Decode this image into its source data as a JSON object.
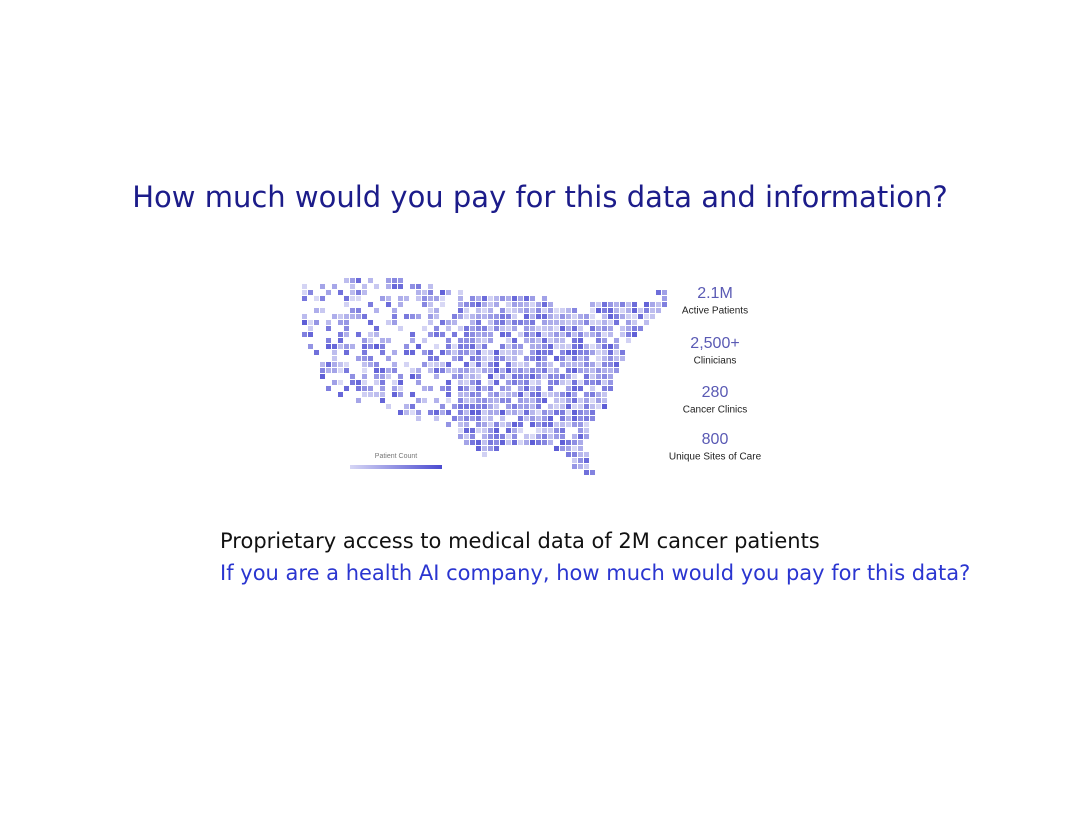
{
  "slide": {
    "title": "How much would you pay for this data and information?",
    "map": {
      "legend_title": "Patient Count",
      "stats": [
        {
          "value": "2.1M",
          "label": "Active Patients"
        },
        {
          "value": "2,500+",
          "label": "Clinicians"
        },
        {
          "value": "280",
          "label": "Cancer Clinics"
        },
        {
          "value": "800",
          "label": "Unique Sites of Care"
        }
      ]
    },
    "lines": [
      "Proprietary access to medical data of 2M cancer patients",
      "If you are a health AI company, how much would you pay for this data?"
    ]
  }
}
